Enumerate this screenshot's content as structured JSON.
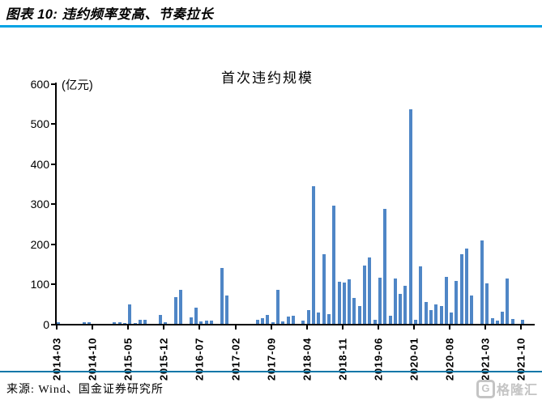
{
  "header": {
    "title": "图表 10:  违约频率变高、节奏拉长"
  },
  "chart": {
    "title": "首次违约规模",
    "unit_label": "(亿元)"
  },
  "chart_data": {
    "type": "bar",
    "title": "首次违约规模",
    "ylabel": "(亿元)",
    "xlabel": "",
    "ylim": [
      0,
      600
    ],
    "yticks": [
      0,
      100,
      200,
      300,
      400,
      500,
      600
    ],
    "grid": false,
    "legend": "none",
    "bar_color": "#4f86c6",
    "x_tick_labels": [
      "2014-03",
      "2014-10",
      "2015-05",
      "2015-12",
      "2016-07",
      "2017-02",
      "2017-09",
      "2018-04",
      "2018-11",
      "2019-06",
      "2020-01",
      "2020-08",
      "2021-03",
      "2021-10"
    ],
    "x_label_every_n_months": 7,
    "categories": [
      "2014-03",
      "2014-04",
      "2014-05",
      "2014-06",
      "2014-07",
      "2014-08",
      "2014-09",
      "2014-10",
      "2014-11",
      "2014-12",
      "2015-01",
      "2015-02",
      "2015-03",
      "2015-04",
      "2015-05",
      "2015-06",
      "2015-07",
      "2015-08",
      "2015-09",
      "2015-10",
      "2015-11",
      "2015-12",
      "2016-01",
      "2016-02",
      "2016-03",
      "2016-04",
      "2016-05",
      "2016-06",
      "2016-07",
      "2016-08",
      "2016-09",
      "2016-10",
      "2016-11",
      "2016-12",
      "2017-01",
      "2017-02",
      "2017-03",
      "2017-04",
      "2017-05",
      "2017-06",
      "2017-07",
      "2017-08",
      "2017-09",
      "2017-10",
      "2017-11",
      "2017-12",
      "2018-01",
      "2018-02",
      "2018-03",
      "2018-04",
      "2018-05",
      "2018-06",
      "2018-07",
      "2018-08",
      "2018-09",
      "2018-10",
      "2018-11",
      "2018-12",
      "2019-01",
      "2019-02",
      "2019-03",
      "2019-04",
      "2019-05",
      "2019-06",
      "2019-07",
      "2019-08",
      "2019-09",
      "2019-10",
      "2019-11",
      "2019-12",
      "2020-01",
      "2020-02",
      "2020-03",
      "2020-04",
      "2020-05",
      "2020-06",
      "2020-07",
      "2020-08",
      "2020-09",
      "2020-10",
      "2020-11",
      "2020-12",
      "2021-01",
      "2021-02",
      "2021-03",
      "2021-04",
      "2021-05",
      "2021-06",
      "2021-07",
      "2021-08",
      "2021-09",
      "2021-10"
    ],
    "values": [
      5,
      0,
      0,
      0,
      0,
      4,
      4,
      0,
      0,
      0,
      0,
      5,
      5,
      3,
      48,
      3,
      10,
      10,
      0,
      0,
      22,
      5,
      0,
      67,
      84,
      0,
      17,
      40,
      7,
      8,
      8,
      0,
      140,
      70,
      0,
      0,
      0,
      0,
      0,
      10,
      15,
      22,
      5,
      84,
      7,
      18,
      21,
      0,
      8,
      35,
      343,
      29,
      174,
      24,
      294,
      106,
      104,
      112,
      64,
      44,
      145,
      165,
      10,
      116,
      287,
      20,
      113,
      74,
      94,
      535,
      10,
      143,
      55,
      35,
      48,
      45,
      118,
      28,
      108,
      174,
      188,
      71,
      0,
      208,
      100,
      15,
      9,
      30,
      114,
      13,
      0,
      10
    ]
  },
  "footer": {
    "source": "来源: Wind、国金证券研究所",
    "logo_icon": "G",
    "logo_text": "格隆汇"
  },
  "colors": {
    "accent_rule_top": "#00a2e4",
    "accent_rule_bottom": "#0c77a8",
    "bar": "#4f86c6",
    "logo_gray": "#c4c4c4"
  }
}
